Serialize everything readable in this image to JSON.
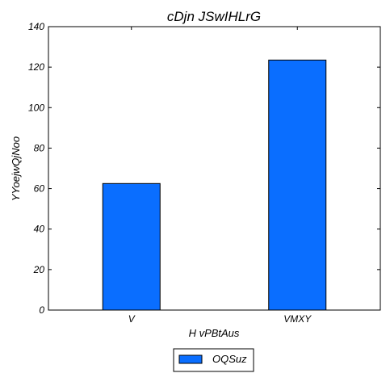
{
  "chart_data": {
    "type": "bar",
    "title": "cDjn JSwIHLrG",
    "xlabel": "H vPBtAus",
    "ylabel": "YYoejwQjNoo",
    "categories": [
      "V",
      "VMXY"
    ],
    "series": [
      {
        "name": "OQSuz",
        "values": [
          62.5,
          123.5
        ],
        "color": "#0a6eff"
      }
    ],
    "ylim": [
      0,
      140
    ],
    "yticks": [
      0,
      20,
      40,
      60,
      80,
      100,
      120,
      140
    ],
    "grid": false,
    "legend_position": "bottom-center"
  }
}
